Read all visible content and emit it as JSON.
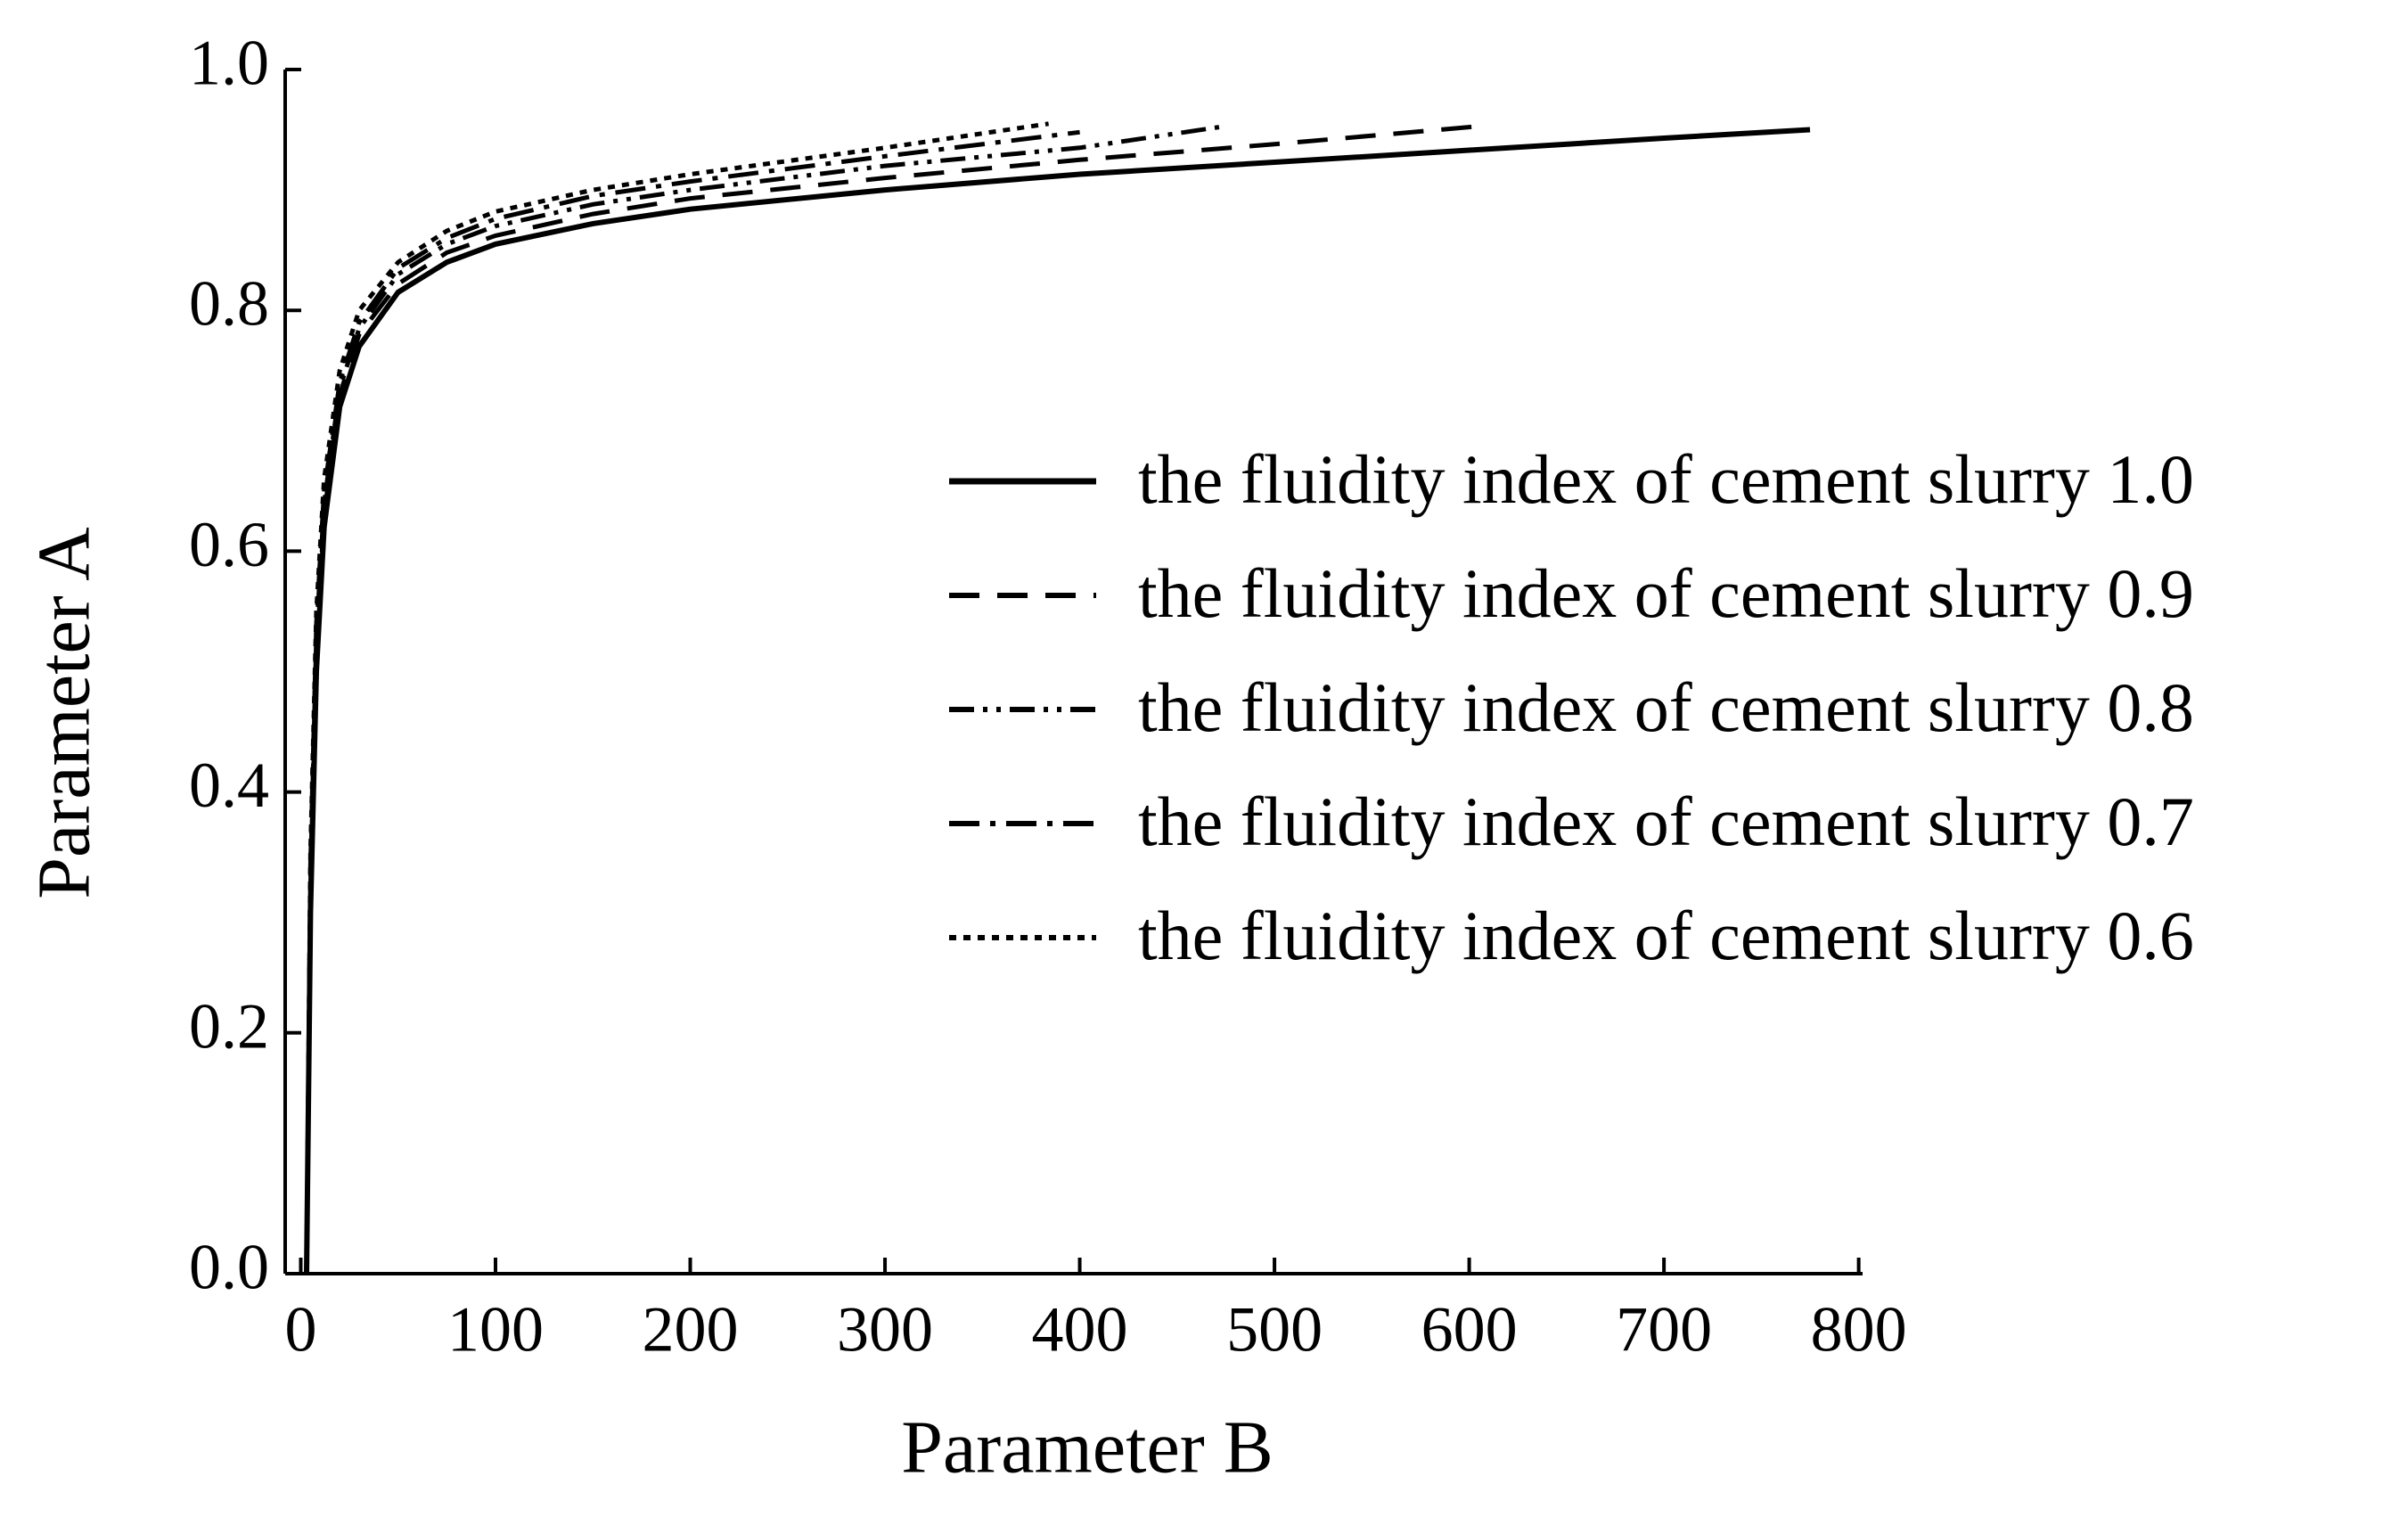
{
  "chart_data": {
    "type": "line",
    "xlabel": "Parameter B",
    "ylabel": "Parameter A",
    "xlim": [
      -8,
      802
    ],
    "ylim": [
      0,
      1
    ],
    "xticks": [
      0,
      100,
      200,
      300,
      400,
      500,
      600,
      700,
      800
    ],
    "yticks": [
      {
        "value": 0,
        "label": "0.0"
      },
      {
        "value": 0.2,
        "label": "0.2"
      },
      {
        "value": 0.4,
        "label": "0.4"
      },
      {
        "value": 0.6,
        "label": "0.6"
      },
      {
        "value": 0.8,
        "label": "0.8"
      },
      {
        "value": 1,
        "label": "1.0"
      }
    ],
    "legend": "right",
    "series": [
      {
        "name": "the fluidity index of cement slurry 1.0",
        "color": "#000000",
        "linestyle": "solid",
        "x": [
          3,
          5,
          8,
          12,
          20,
          30,
          50,
          75,
          100,
          150,
          200,
          300,
          400,
          500,
          600,
          700,
          775
        ],
        "values": [
          0,
          0.3,
          0.5,
          0.62,
          0.72,
          0.77,
          0.815,
          0.84,
          0.855,
          0.872,
          0.884,
          0.9,
          0.913,
          0.923,
          0.933,
          0.943,
          0.95
        ]
      },
      {
        "name": "the fluidity index of cement slurry 0.9",
        "color": "#000000",
        "linestyle": "dashed",
        "x": [
          3,
          5,
          8,
          12,
          20,
          30,
          50,
          75,
          100,
          150,
          200,
          300,
          400,
          500,
          606
        ],
        "values": [
          0,
          0.32,
          0.52,
          0.63,
          0.73,
          0.78,
          0.822,
          0.848,
          0.862,
          0.88,
          0.893,
          0.91,
          0.925,
          0.938,
          0.953
        ]
      },
      {
        "name": "the fluidity index of cement slurry 0.8",
        "color": "#000000",
        "linestyle": "dashdotdot",
        "x": [
          3,
          5,
          8,
          12,
          20,
          30,
          50,
          75,
          100,
          150,
          200,
          300,
          400,
          475
        ],
        "values": [
          0,
          0.33,
          0.53,
          0.64,
          0.735,
          0.785,
          0.83,
          0.855,
          0.87,
          0.888,
          0.9,
          0.92,
          0.935,
          0.953
        ]
      },
      {
        "name": "the fluidity index of cement slurry 0.7",
        "color": "#000000",
        "linestyle": "dashdot",
        "x": [
          3,
          5,
          8,
          12,
          20,
          30,
          50,
          75,
          100,
          150,
          200,
          300,
          400
        ],
        "values": [
          0,
          0.34,
          0.54,
          0.65,
          0.74,
          0.79,
          0.835,
          0.86,
          0.876,
          0.895,
          0.907,
          0.928,
          0.948
        ]
      },
      {
        "name": "the fluidity index of cement slurry 0.6",
        "color": "#000000",
        "linestyle": "dotted",
        "x": [
          3,
          5,
          8,
          12,
          20,
          30,
          50,
          75,
          100,
          150,
          200,
          300,
          384
        ],
        "values": [
          0,
          0.35,
          0.55,
          0.66,
          0.75,
          0.8,
          0.84,
          0.866,
          0.882,
          0.9,
          0.913,
          0.935,
          0.955
        ]
      }
    ]
  }
}
